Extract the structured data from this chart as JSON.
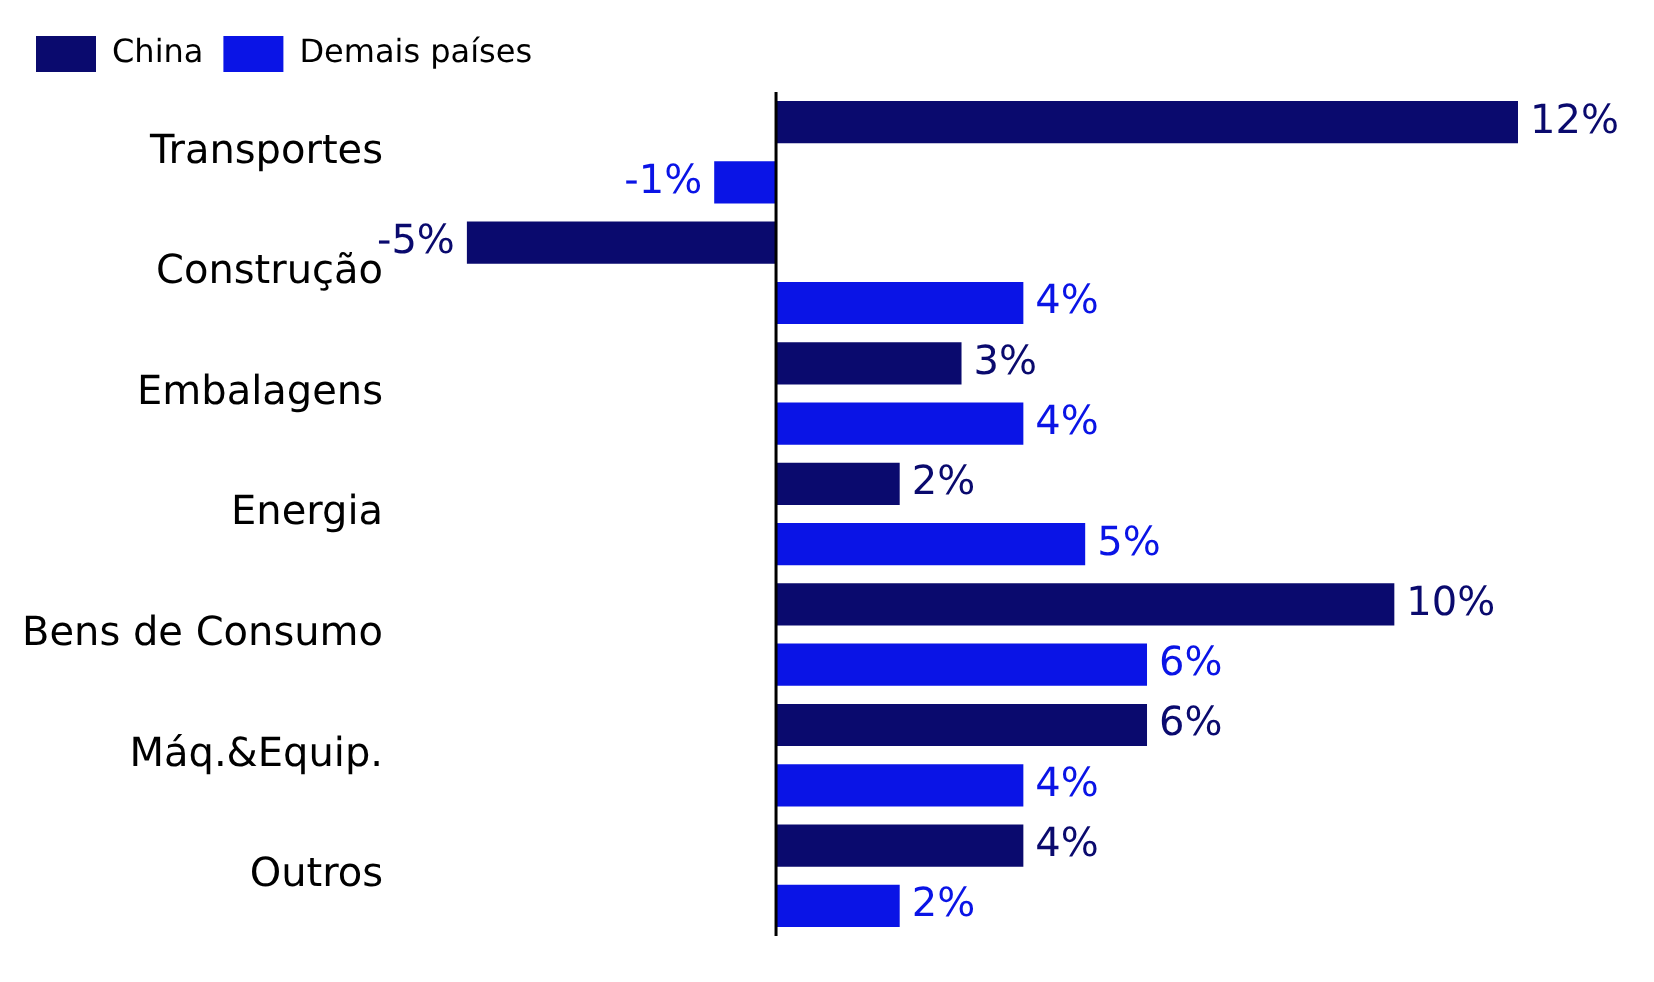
{
  "chart_data": {
    "type": "bar",
    "orientation": "horizontal",
    "categories": [
      "Transportes",
      "Construção",
      "Embalagens",
      "Energia",
      "Bens de Consumo",
      "Máq.&Equip.",
      "Outros"
    ],
    "series": [
      {
        "name": "China",
        "color": "#0a0a6e",
        "values": [
          12,
          -5,
          3,
          2,
          10,
          6,
          4
        ],
        "value_labels": [
          "12%",
          "-5%",
          "3%",
          "2%",
          "10%",
          "6%",
          "4%"
        ]
      },
      {
        "name": "Demais países",
        "color": "#0a14e6",
        "values": [
          -1,
          4,
          4,
          5,
          6,
          4,
          2
        ],
        "value_labels": [
          "-1%",
          "4%",
          "4%",
          "5%",
          "6%",
          "4%",
          "2%"
        ]
      }
    ],
    "legend": "top left",
    "tick_labels": "y"
  }
}
